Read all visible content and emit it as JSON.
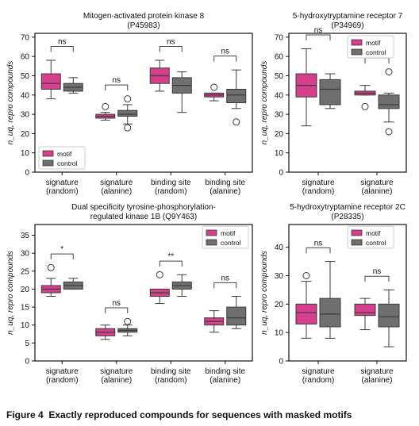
{
  "figure": {
    "caption_label": "Figure 4",
    "caption_text": "Exactly reproduced compounds for sequences with masked motifs",
    "colors": {
      "motif": "#d63f8c",
      "control": "#6f6f6f",
      "median": "#3a3a3a"
    }
  },
  "chart_data": [
    {
      "type": "boxplot",
      "title": "Mitogen-activated protein kinase 8",
      "subtitle": "(P45983)",
      "ylabel": "n_uq, repro compounds",
      "ylim": [
        0,
        72
      ],
      "yticks": [
        0,
        10,
        20,
        30,
        40,
        50,
        60,
        70
      ],
      "categories": [
        "signature\n(random)",
        "signature\n(alanine)",
        "binding site\n(random)",
        "binding site\n(alanine)"
      ],
      "legend": {
        "position": "lower-left",
        "entries": [
          "motif",
          "control"
        ]
      },
      "series": [
        {
          "name": "motif",
          "boxes": [
            {
              "whislo": 38,
              "q1": 43,
              "med": 46,
              "q3": 51,
              "whishi": 58,
              "fliers": []
            },
            {
              "whislo": 27,
              "q1": 28,
              "med": 29,
              "q3": 30,
              "whishi": 31,
              "fliers": [
                34
              ]
            },
            {
              "whislo": 42,
              "q1": 46,
              "med": 50,
              "q3": 54,
              "whishi": 58,
              "fliers": []
            },
            {
              "whislo": 37,
              "q1": 39,
              "med": 40,
              "q3": 41,
              "whishi": 41,
              "fliers": [
                44
              ]
            }
          ]
        },
        {
          "name": "control",
          "boxes": [
            {
              "whislo": 41,
              "q1": 42,
              "med": 44,
              "q3": 46,
              "whishi": 49,
              "fliers": []
            },
            {
              "whislo": 25,
              "q1": 29,
              "med": 30,
              "q3": 32,
              "whishi": 35,
              "fliers": [
                23,
                38
              ]
            },
            {
              "whislo": 31,
              "q1": 41,
              "med": 45,
              "q3": 49,
              "whishi": 52,
              "fliers": []
            },
            {
              "whislo": 33,
              "q1": 36,
              "med": 40,
              "q3": 43,
              "whishi": 53,
              "fliers": [
                26
              ]
            }
          ]
        }
      ],
      "annotations": [
        "ns",
        "ns",
        "ns",
        "ns"
      ]
    },
    {
      "type": "boxplot",
      "title": "5-hydroxytryptamine receptor 7",
      "subtitle": "(P34969)",
      "ylabel": "n_uq, repro compounds",
      "ylim": [
        0,
        72
      ],
      "yticks": [
        0,
        10,
        20,
        30,
        40,
        50,
        60,
        70
      ],
      "categories": [
        "signature\n(random)",
        "signature\n(alanine)"
      ],
      "legend": {
        "position": "top-right",
        "entries": [
          "motif",
          "control"
        ]
      },
      "series": [
        {
          "name": "motif",
          "boxes": [
            {
              "whislo": 24,
              "q1": 39,
              "med": 45,
              "q3": 51,
              "whishi": 64,
              "fliers": []
            },
            {
              "whislo": 40,
              "q1": 40,
              "med": 41,
              "q3": 42,
              "whishi": 45,
              "fliers": [
                34
              ]
            }
          ]
        },
        {
          "name": "control",
          "boxes": [
            {
              "whislo": 33,
              "q1": 35,
              "med": 43,
              "q3": 48,
              "whishi": 51,
              "fliers": []
            },
            {
              "whislo": 26,
              "q1": 33,
              "med": 35,
              "q3": 40,
              "whishi": 41,
              "fliers": [
                52,
                21
              ]
            }
          ]
        }
      ],
      "annotations": [
        "ns",
        "*"
      ]
    },
    {
      "type": "boxplot",
      "title": "Dual specificity tyrosine-phosphorylation-",
      "subtitle": "regulated kinase 1B (Q9Y463)",
      "ylabel": "n_uq, repro compounds",
      "ylim": [
        0,
        38
      ],
      "yticks": [
        0,
        5,
        10,
        15,
        20,
        25,
        30,
        35
      ],
      "categories": [
        "signature\n(random)",
        "signature\n(alanine)",
        "binding site\n(random)",
        "binding site\n(alanine)"
      ],
      "legend": {
        "position": "top-right",
        "entries": [
          "motif",
          "control"
        ]
      },
      "series": [
        {
          "name": "motif",
          "boxes": [
            {
              "whislo": 18,
              "q1": 19,
              "med": 20,
              "q3": 21,
              "whishi": 23,
              "fliers": [
                26
              ]
            },
            {
              "whislo": 6,
              "q1": 7,
              "med": 8,
              "q3": 9,
              "whishi": 10,
              "fliers": []
            },
            {
              "whislo": 16,
              "q1": 18,
              "med": 19,
              "q3": 20,
              "whishi": 20,
              "fliers": [
                24
              ]
            },
            {
              "whislo": 8,
              "q1": 10,
              "med": 11,
              "q3": 12,
              "whishi": 14,
              "fliers": []
            }
          ]
        },
        {
          "name": "control",
          "boxes": [
            {
              "whislo": 20,
              "q1": 20,
              "med": 21,
              "q3": 22,
              "whishi": 23,
              "fliers": []
            },
            {
              "whislo": 7,
              "q1": 8,
              "med": 8.5,
              "q3": 9,
              "whishi": 10,
              "fliers": [
                11
              ]
            },
            {
              "whislo": 18,
              "q1": 20,
              "med": 21,
              "q3": 22,
              "whishi": 24,
              "fliers": []
            },
            {
              "whislo": 9,
              "q1": 10,
              "med": 12,
              "q3": 15,
              "whishi": 18,
              "fliers": []
            }
          ]
        }
      ],
      "annotations": [
        "*",
        "ns",
        "**",
        "ns"
      ]
    },
    {
      "type": "boxplot",
      "title": "5-hydroxytryptamine receptor 2C",
      "subtitle": "(P28335)",
      "ylabel": "n_uq, repro compounds",
      "ylim": [
        0,
        48
      ],
      "yticks": [
        0,
        10,
        20,
        30,
        40
      ],
      "categories": [
        "signature\n(random)",
        "signature\n(alanine)"
      ],
      "legend": {
        "position": "top-right",
        "entries": [
          "motif",
          "control"
        ]
      },
      "series": [
        {
          "name": "motif",
          "boxes": [
            {
              "whislo": 8,
              "q1": 13,
              "med": 17,
              "q3": 20,
              "whishi": 28,
              "fliers": [
                30
              ]
            },
            {
              "whislo": 11,
              "q1": 16,
              "med": 17,
              "q3": 20,
              "whishi": 22,
              "fliers": []
            }
          ]
        },
        {
          "name": "control",
          "boxes": [
            {
              "whislo": 8,
              "q1": 12,
              "med": 16.5,
              "q3": 22,
              "whishi": 35,
              "fliers": []
            },
            {
              "whislo": 5,
              "q1": 12,
              "med": 15.5,
              "q3": 20,
              "whishi": 25,
              "fliers": []
            }
          ]
        }
      ],
      "annotations": [
        "ns",
        "ns"
      ]
    }
  ]
}
